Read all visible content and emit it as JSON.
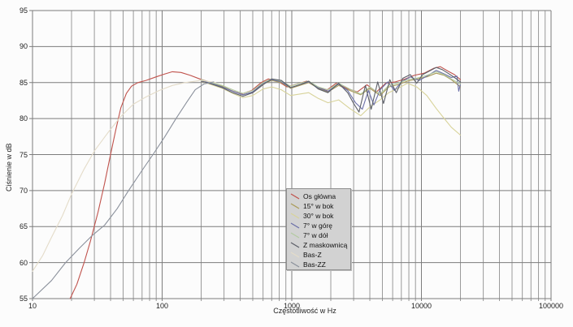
{
  "chart_data": {
    "type": "line",
    "title": "",
    "xlabel": "Częstotliwość w Hz",
    "ylabel": "Ciśnienie w dB",
    "x_scale": "log",
    "xlim": [
      10,
      100000
    ],
    "ylim": [
      55,
      95
    ],
    "x_ticks": [
      10,
      100,
      1000,
      10000,
      100000
    ],
    "y_ticks": [
      95,
      90,
      85,
      80,
      75,
      70,
      65,
      60,
      55
    ],
    "grid": "log-minor vertical lines (2-9 per decade) and horizontal lines every 5 dB",
    "legend_position": "center",
    "colors": {
      "grid_minor": "#9a9a9a",
      "grid_major": "#7d7d7d",
      "legend_bg": "#d2d2d2",
      "legend_border": "#8f8f8f",
      "text": "#222222",
      "plot_bg": "#fcfcfc"
    },
    "series": [
      {
        "name": "Os główna",
        "color": "#c0524c",
        "points": [
          [
            19.5,
            55
          ],
          [
            22,
            57
          ],
          [
            25,
            60
          ],
          [
            28,
            63
          ],
          [
            32,
            67
          ],
          [
            36,
            71
          ],
          [
            40,
            75
          ],
          [
            44,
            78.5
          ],
          [
            48,
            81.5
          ],
          [
            53,
            83.5
          ],
          [
            58,
            84.5
          ],
          [
            65,
            85
          ],
          [
            75,
            85.3
          ],
          [
            90,
            85.8
          ],
          [
            105,
            86.2
          ],
          [
            120,
            86.5
          ],
          [
            140,
            86.4
          ],
          [
            165,
            86
          ],
          [
            195,
            85.5
          ],
          [
            230,
            85.1
          ],
          [
            280,
            84.6
          ],
          [
            340,
            83.9
          ],
          [
            410,
            83.4
          ],
          [
            490,
            83.9
          ],
          [
            580,
            85
          ],
          [
            660,
            85.5
          ],
          [
            780,
            85.2
          ],
          [
            920,
            84.4
          ],
          [
            1100,
            84.8
          ],
          [
            1300,
            85.2
          ],
          [
            1550,
            84.5
          ],
          [
            1850,
            83.9
          ],
          [
            2200,
            84.9
          ],
          [
            2650,
            84.2
          ],
          [
            3200,
            83.7
          ],
          [
            3800,
            84.7
          ],
          [
            4500,
            83.7
          ],
          [
            5300,
            84.9
          ],
          [
            6300,
            85.1
          ],
          [
            7500,
            85.5
          ],
          [
            8800,
            86
          ],
          [
            10500,
            86.3
          ],
          [
            12500,
            87
          ],
          [
            14000,
            87.2
          ],
          [
            16000,
            86.6
          ],
          [
            18000,
            86.1
          ],
          [
            20000,
            85.4
          ]
        ]
      },
      {
        "name": "15° w bok",
        "color": "#ab9c5b",
        "points": [
          [
            200,
            85.4
          ],
          [
            240,
            85
          ],
          [
            290,
            84.5
          ],
          [
            350,
            83.8
          ],
          [
            420,
            83.3
          ],
          [
            500,
            83.7
          ],
          [
            600,
            84.8
          ],
          [
            700,
            85.3
          ],
          [
            830,
            85
          ],
          [
            980,
            84.2
          ],
          [
            1150,
            84.6
          ],
          [
            1350,
            85
          ],
          [
            1600,
            84.2
          ],
          [
            1900,
            83.7
          ],
          [
            2300,
            84.6
          ],
          [
            2800,
            83.9
          ],
          [
            3400,
            83.3
          ],
          [
            4000,
            84.2
          ],
          [
            4800,
            83.2
          ],
          [
            5600,
            84.4
          ],
          [
            6600,
            84.7
          ],
          [
            7800,
            85.2
          ],
          [
            9200,
            85.5
          ],
          [
            11000,
            85.8
          ],
          [
            13000,
            86.3
          ],
          [
            15000,
            86
          ],
          [
            17000,
            85.4
          ],
          [
            20000,
            84.4
          ]
        ]
      },
      {
        "name": "30° w bok",
        "color": "#d8d39a",
        "points": [
          [
            200,
            85.2
          ],
          [
            240,
            84.7
          ],
          [
            290,
            84.2
          ],
          [
            350,
            83.5
          ],
          [
            420,
            82.9
          ],
          [
            500,
            83.2
          ],
          [
            600,
            84.1
          ],
          [
            700,
            84.4
          ],
          [
            830,
            84
          ],
          [
            980,
            83.2
          ],
          [
            1150,
            83.4
          ],
          [
            1350,
            83.6
          ],
          [
            1600,
            82.8
          ],
          [
            1900,
            82.2
          ],
          [
            2300,
            82.6
          ],
          [
            2800,
            81.4
          ],
          [
            3400,
            80.4
          ],
          [
            4000,
            81.6
          ],
          [
            4800,
            82.6
          ],
          [
            5600,
            83.6
          ],
          [
            6600,
            84.2
          ],
          [
            7800,
            84.9
          ],
          [
            9200,
            84.4
          ],
          [
            11000,
            83.2
          ],
          [
            13000,
            81.4
          ],
          [
            15000,
            80
          ],
          [
            17000,
            78.8
          ],
          [
            20000,
            77.7
          ]
        ]
      },
      {
        "name": "7° w górę",
        "color": "#6b6fa8",
        "points": [
          [
            200,
            85.3
          ],
          [
            240,
            84.9
          ],
          [
            290,
            84.4
          ],
          [
            350,
            83.8
          ],
          [
            420,
            83.3
          ],
          [
            500,
            83.7
          ],
          [
            600,
            84.9
          ],
          [
            700,
            85.4
          ],
          [
            830,
            85.1
          ],
          [
            980,
            84.3
          ],
          [
            1150,
            84.7
          ],
          [
            1350,
            85.1
          ],
          [
            1600,
            84.3
          ],
          [
            1900,
            83.8
          ],
          [
            2300,
            84.8
          ],
          [
            2700,
            83.9
          ],
          [
            3100,
            82.2
          ],
          [
            3500,
            81.3
          ],
          [
            3900,
            83.9
          ],
          [
            4300,
            81.9
          ],
          [
            4800,
            84
          ],
          [
            5500,
            85.1
          ],
          [
            6200,
            83.9
          ],
          [
            7000,
            85.1
          ],
          [
            8200,
            85.8
          ],
          [
            9600,
            85.3
          ],
          [
            11500,
            86.1
          ],
          [
            13000,
            86.7
          ],
          [
            15000,
            86.2
          ],
          [
            17000,
            85.7
          ],
          [
            18800,
            85.9
          ],
          [
            19400,
            83.8
          ],
          [
            20000,
            84.8
          ]
        ]
      },
      {
        "name": "7° w dół",
        "color": "#b3caa1",
        "points": [
          [
            200,
            85.4
          ],
          [
            240,
            85
          ],
          [
            290,
            84.6
          ],
          [
            350,
            84
          ],
          [
            420,
            83.5
          ],
          [
            500,
            83.9
          ],
          [
            600,
            85
          ],
          [
            700,
            85.5
          ],
          [
            830,
            85.2
          ],
          [
            980,
            84.5
          ],
          [
            1150,
            84.9
          ],
          [
            1350,
            85.2
          ],
          [
            1600,
            84.4
          ],
          [
            1900,
            84
          ],
          [
            2300,
            84.9
          ],
          [
            2800,
            84.1
          ],
          [
            3400,
            83.4
          ],
          [
            4000,
            84.4
          ],
          [
            4800,
            83.4
          ],
          [
            5600,
            84.6
          ],
          [
            6600,
            84.9
          ],
          [
            7800,
            85.4
          ],
          [
            9200,
            85.6
          ],
          [
            11000,
            86
          ],
          [
            13000,
            86.5
          ],
          [
            15000,
            86.1
          ],
          [
            17000,
            85.5
          ],
          [
            20000,
            84.8
          ]
        ]
      },
      {
        "name": "Z maskownicą",
        "color": "#5c5f68",
        "points": [
          [
            200,
            85.2
          ],
          [
            240,
            84.8
          ],
          [
            290,
            84.3
          ],
          [
            350,
            83.6
          ],
          [
            420,
            83.1
          ],
          [
            500,
            83.6
          ],
          [
            600,
            84.7
          ],
          [
            700,
            85.5
          ],
          [
            830,
            85.3
          ],
          [
            980,
            84.3
          ],
          [
            1150,
            84.7
          ],
          [
            1350,
            85.2
          ],
          [
            1600,
            84.1
          ],
          [
            1900,
            83.6
          ],
          [
            2300,
            84.9
          ],
          [
            2700,
            83.6
          ],
          [
            3000,
            82.1
          ],
          [
            3300,
            80.9
          ],
          [
            3700,
            84.6
          ],
          [
            4100,
            81.3
          ],
          [
            4600,
            85.1
          ],
          [
            5100,
            82.1
          ],
          [
            5700,
            85.4
          ],
          [
            6400,
            83.6
          ],
          [
            7200,
            85.6
          ],
          [
            8200,
            86.1
          ],
          [
            9200,
            84.9
          ],
          [
            10200,
            86.1
          ],
          [
            11500,
            86.6
          ],
          [
            13000,
            87.1
          ],
          [
            14500,
            86.8
          ],
          [
            16000,
            86.3
          ],
          [
            18000,
            85.7
          ],
          [
            20000,
            85.1
          ]
        ]
      },
      {
        "name": "Bas-Z",
        "color": "#e4dcc9",
        "points": [
          [
            10,
            58.8
          ],
          [
            12,
            61
          ],
          [
            14,
            63.5
          ],
          [
            17,
            66.5
          ],
          [
            20,
            69.5
          ],
          [
            25,
            73
          ],
          [
            30,
            75.5
          ],
          [
            38,
            78
          ],
          [
            48,
            80.3
          ],
          [
            60,
            82
          ],
          [
            75,
            83
          ],
          [
            95,
            83.9
          ],
          [
            120,
            84.6
          ],
          [
            150,
            85
          ],
          [
            200,
            85.3
          ],
          [
            260,
            85
          ]
        ]
      },
      {
        "name": "Bas-ZZ",
        "color": "#8b919c",
        "points": [
          [
            10,
            55
          ],
          [
            14,
            57.5
          ],
          [
            18,
            60
          ],
          [
            23,
            62
          ],
          [
            29,
            63.8
          ],
          [
            36,
            65.2
          ],
          [
            45,
            67.5
          ],
          [
            55,
            70
          ],
          [
            70,
            72.8
          ],
          [
            85,
            75
          ],
          [
            105,
            77.5
          ],
          [
            128,
            80
          ],
          [
            155,
            82.3
          ],
          [
            180,
            84
          ],
          [
            210,
            84.8
          ],
          [
            250,
            85.1
          ]
        ]
      }
    ]
  }
}
